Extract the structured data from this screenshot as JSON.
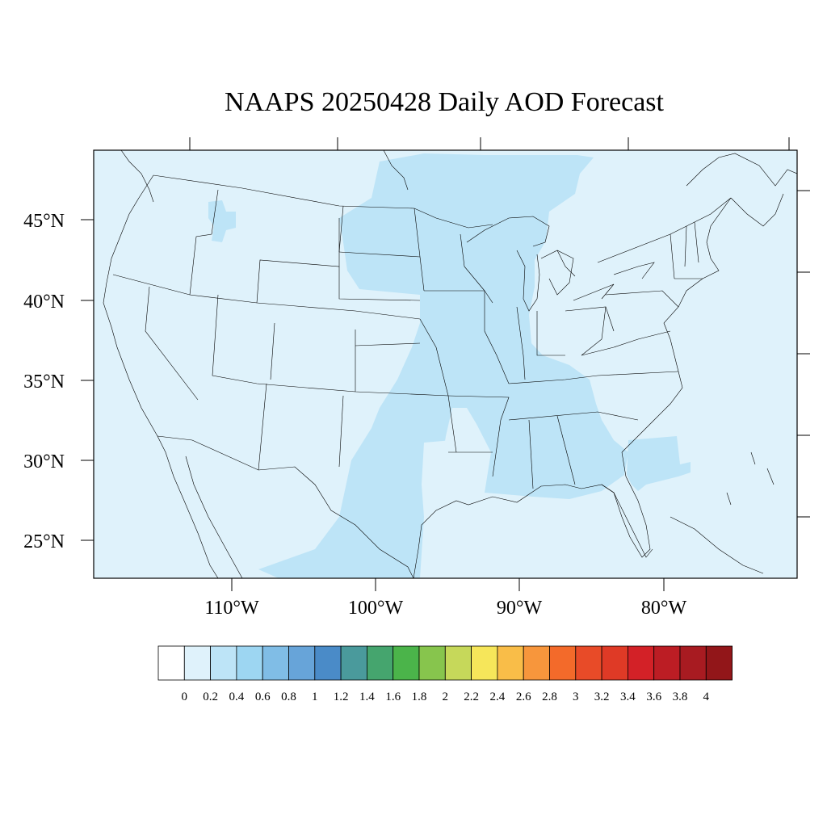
{
  "title": "NAAPS 20250428 Daily AOD Forecast",
  "map": {
    "background_color": "#dff2fb",
    "plume_color": "#bde4f7",
    "lat_labels": [
      "45°N",
      "40°N",
      "35°N",
      "30°N",
      "25°N"
    ],
    "lon_labels": [
      "110°W",
      "100°W",
      "90°W",
      "80°W"
    ]
  },
  "colorbar": {
    "labels": [
      "0",
      "0.2",
      "0.4",
      "0.6",
      "0.8",
      "1",
      "1.2",
      "1.4",
      "1.6",
      "1.8",
      "2",
      "2.2",
      "2.4",
      "2.6",
      "2.8",
      "3",
      "3.2",
      "3.4",
      "3.6",
      "3.8",
      "4"
    ],
    "colors": [
      "#ffffff",
      "#dff2fb",
      "#bde4f7",
      "#9dd6f2",
      "#80bde6",
      "#67a4d9",
      "#4a8bc8",
      "#4a9a9c",
      "#45a56e",
      "#4bb44a",
      "#87c54d",
      "#c6d85a",
      "#f6e65a",
      "#f9bd48",
      "#f7963c",
      "#f36a2a",
      "#e84b28",
      "#df3a26",
      "#d32127",
      "#bc1d24",
      "#a81b21",
      "#921619"
    ]
  }
}
